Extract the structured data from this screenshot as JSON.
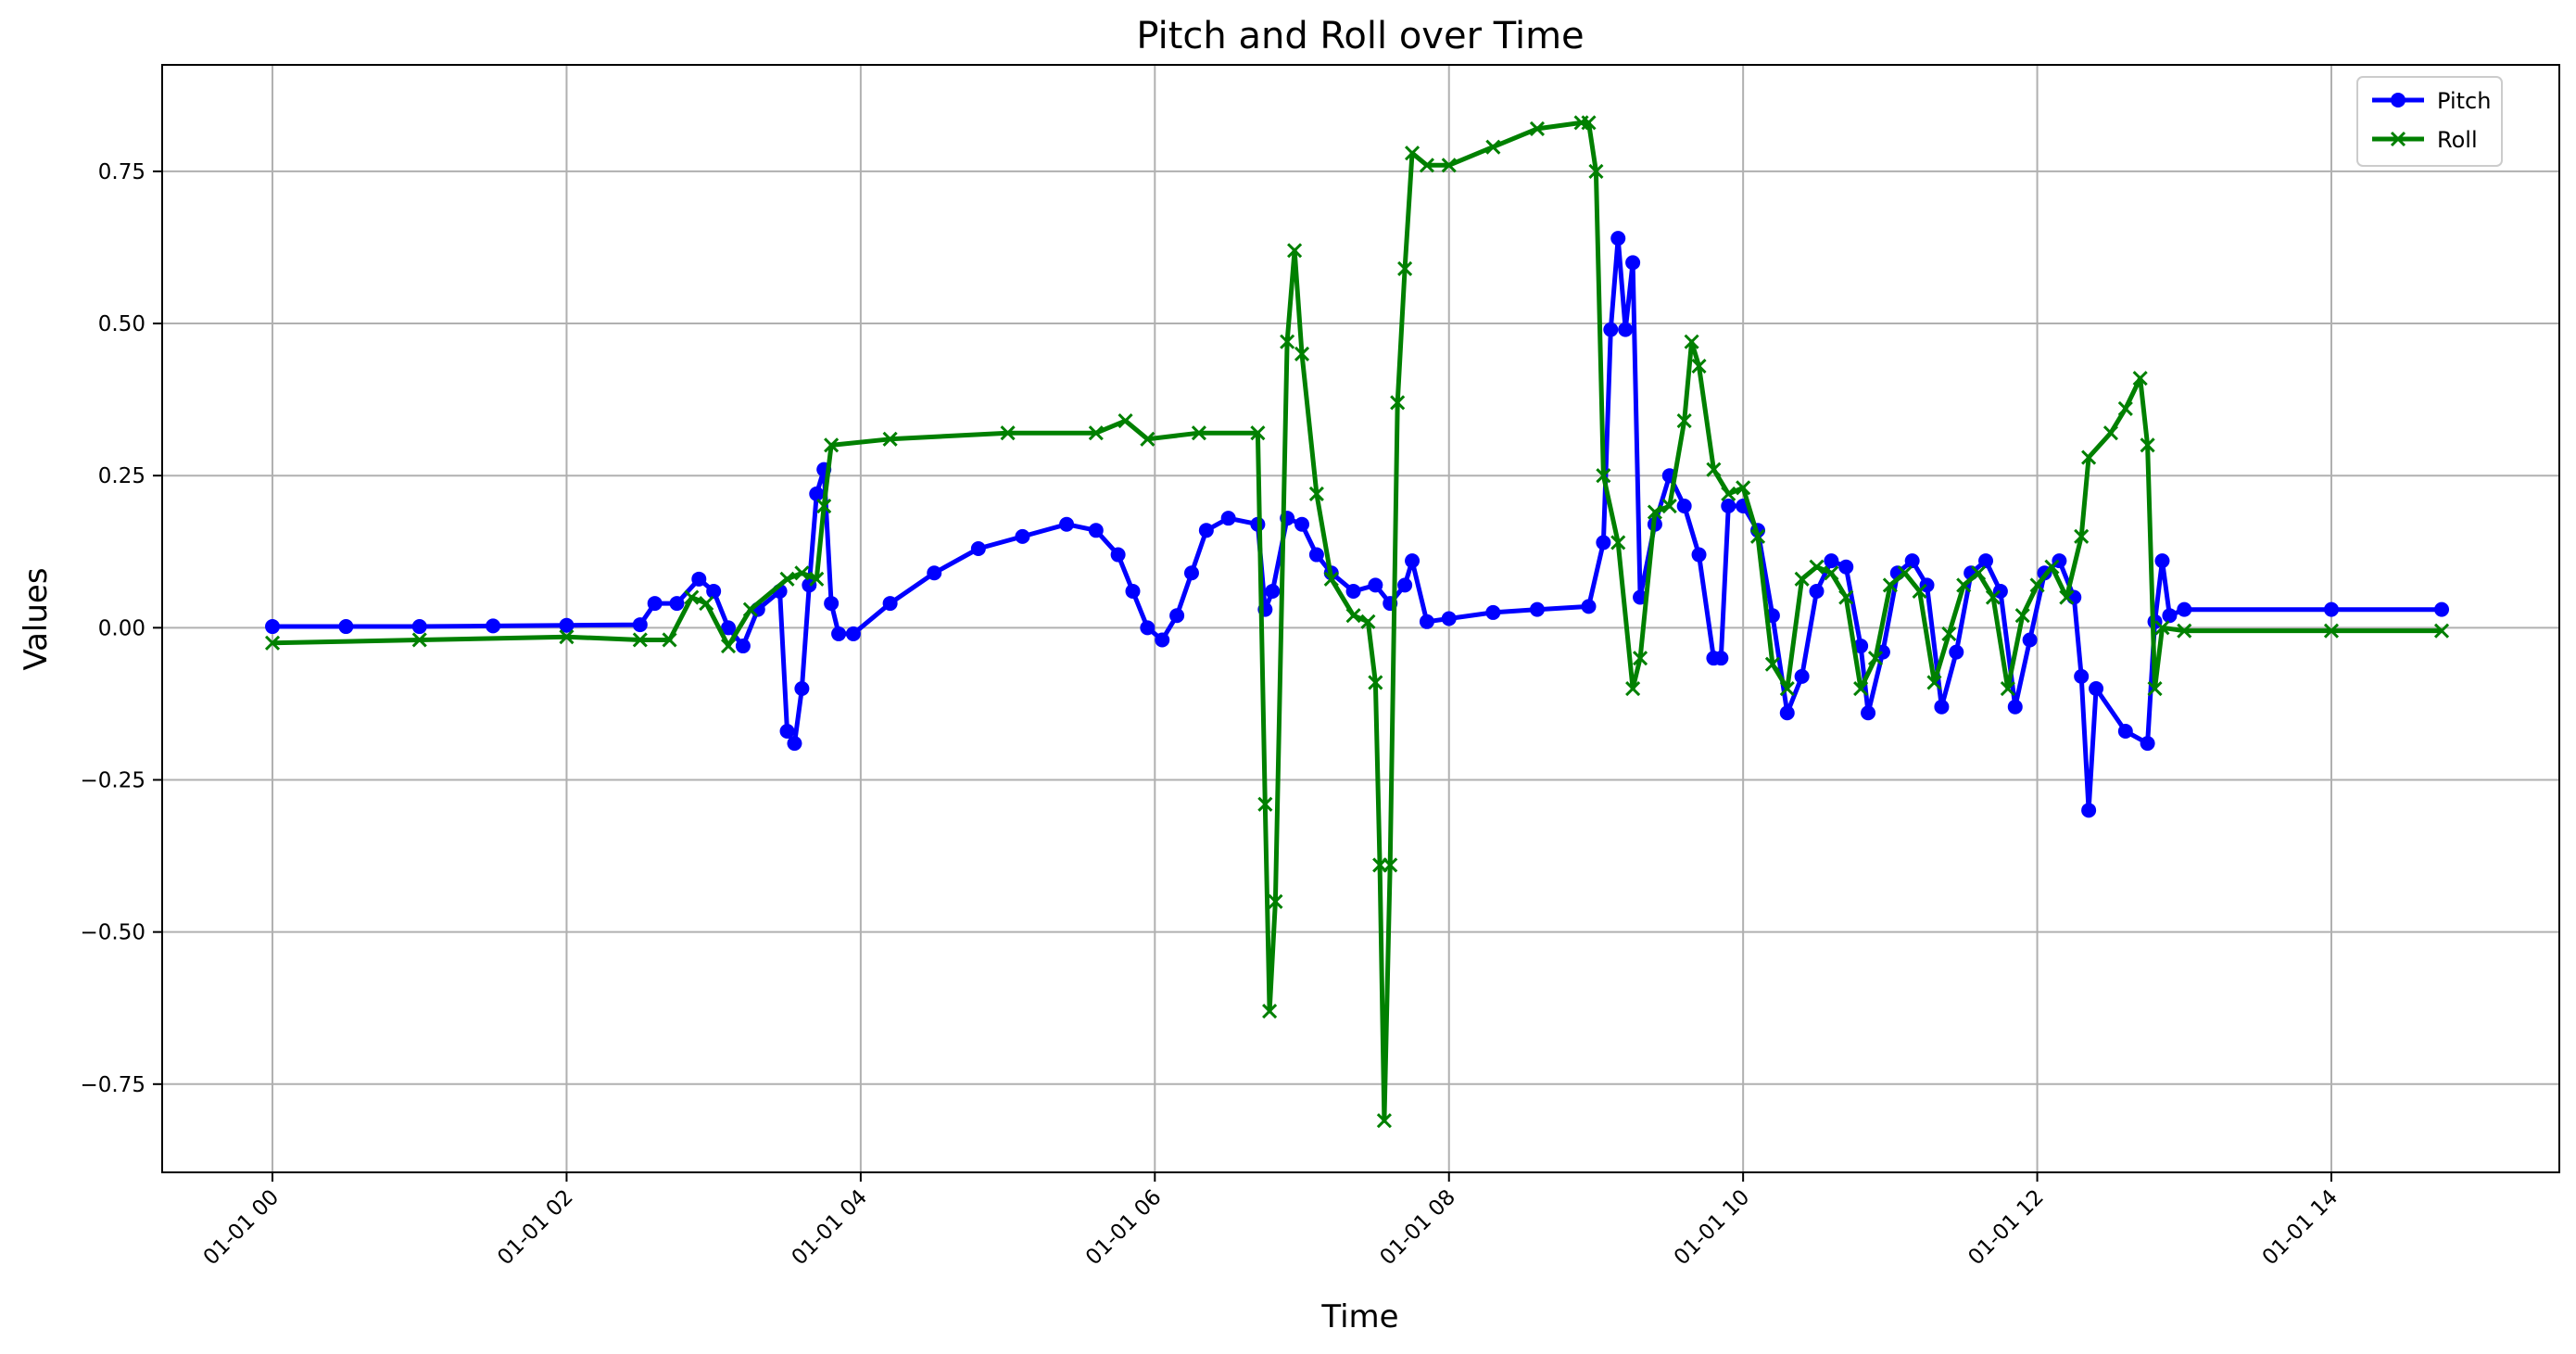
{
  "chart_data": {
    "type": "line",
    "title": "Pitch and Roll over Time",
    "xlabel": "Time",
    "ylabel": "Values",
    "x_tick_labels": [
      "01-01 00",
      "01-01 02",
      "01-01 04",
      "01-01 06",
      "01-01 08",
      "01-01 10",
      "01-01 12",
      "01-01 14"
    ],
    "x_tick_hours": [
      0,
      2,
      4,
      6,
      8,
      10,
      12,
      14
    ],
    "y_tick_labels": [
      "−0.75",
      "−0.50",
      "−0.25",
      "0.00",
      "0.25",
      "0.50",
      "0.75"
    ],
    "y_tick_values": [
      -0.75,
      -0.5,
      -0.25,
      0,
      0.25,
      0.5,
      0.75
    ],
    "x_unit": "hours since 01-01 00:00",
    "xlim": [
      -0.75,
      15.55
    ],
    "ylim": [
      -0.895,
      0.925
    ],
    "grid": true,
    "legend_position": "top-right",
    "series": [
      {
        "name": "Pitch",
        "color": "#0000ff",
        "marker": "circle",
        "points": [
          [
            0,
            0.002
          ],
          [
            0.5,
            0.002
          ],
          [
            1,
            0.002
          ],
          [
            1.5,
            0.003
          ],
          [
            2,
            0.004
          ],
          [
            2.5,
            0.005
          ],
          [
            2.6,
            0.04
          ],
          [
            2.75,
            0.04
          ],
          [
            2.9,
            0.08
          ],
          [
            3.0,
            0.06
          ],
          [
            3.1,
            0.0
          ],
          [
            3.2,
            -0.03
          ],
          [
            3.3,
            0.03
          ],
          [
            3.45,
            0.06
          ],
          [
            3.5,
            -0.17
          ],
          [
            3.55,
            -0.19
          ],
          [
            3.6,
            -0.1
          ],
          [
            3.65,
            0.07
          ],
          [
            3.7,
            0.22
          ],
          [
            3.75,
            0.26
          ],
          [
            3.8,
            0.04
          ],
          [
            3.85,
            -0.01
          ],
          [
            3.95,
            -0.01
          ],
          [
            4.2,
            0.04
          ],
          [
            4.5,
            0.09
          ],
          [
            4.8,
            0.13
          ],
          [
            5.1,
            0.15
          ],
          [
            5.4,
            0.17
          ],
          [
            5.6,
            0.16
          ],
          [
            5.75,
            0.12
          ],
          [
            5.85,
            0.06
          ],
          [
            5.95,
            0.0
          ],
          [
            6.05,
            -0.02
          ],
          [
            6.15,
            0.02
          ],
          [
            6.25,
            0.09
          ],
          [
            6.35,
            0.16
          ],
          [
            6.5,
            0.18
          ],
          [
            6.7,
            0.17
          ],
          [
            6.75,
            0.03
          ],
          [
            6.8,
            0.06
          ],
          [
            6.9,
            0.18
          ],
          [
            7.0,
            0.17
          ],
          [
            7.1,
            0.12
          ],
          [
            7.2,
            0.09
          ],
          [
            7.35,
            0.06
          ],
          [
            7.5,
            0.07
          ],
          [
            7.6,
            0.04
          ],
          [
            7.7,
            0.07
          ],
          [
            7.75,
            0.11
          ],
          [
            7.85,
            0.01
          ],
          [
            8.0,
            0.015
          ],
          [
            8.3,
            0.025
          ],
          [
            8.6,
            0.03
          ],
          [
            8.95,
            0.035
          ],
          [
            9.05,
            0.14
          ],
          [
            9.1,
            0.49
          ],
          [
            9.15,
            0.64
          ],
          [
            9.2,
            0.49
          ],
          [
            9.25,
            0.6
          ],
          [
            9.3,
            0.05
          ],
          [
            9.4,
            0.17
          ],
          [
            9.5,
            0.25
          ],
          [
            9.6,
            0.2
          ],
          [
            9.7,
            0.12
          ],
          [
            9.8,
            -0.05
          ],
          [
            9.85,
            -0.05
          ],
          [
            9.9,
            0.2
          ],
          [
            10.0,
            0.2
          ],
          [
            10.1,
            0.16
          ],
          [
            10.2,
            0.02
          ],
          [
            10.3,
            -0.14
          ],
          [
            10.4,
            -0.08
          ],
          [
            10.5,
            0.06
          ],
          [
            10.6,
            0.11
          ],
          [
            10.7,
            0.1
          ],
          [
            10.8,
            -0.03
          ],
          [
            10.85,
            -0.14
          ],
          [
            10.95,
            -0.04
          ],
          [
            11.05,
            0.09
          ],
          [
            11.15,
            0.11
          ],
          [
            11.25,
            0.07
          ],
          [
            11.35,
            -0.13
          ],
          [
            11.45,
            -0.04
          ],
          [
            11.55,
            0.09
          ],
          [
            11.65,
            0.11
          ],
          [
            11.75,
            0.06
          ],
          [
            11.85,
            -0.13
          ],
          [
            11.95,
            -0.02
          ],
          [
            12.05,
            0.09
          ],
          [
            12.15,
            0.11
          ],
          [
            12.25,
            0.05
          ],
          [
            12.3,
            -0.08
          ],
          [
            12.35,
            -0.3
          ],
          [
            12.4,
            -0.1
          ],
          [
            12.6,
            -0.17
          ],
          [
            12.75,
            -0.19
          ],
          [
            12.8,
            0.01
          ],
          [
            12.85,
            0.11
          ],
          [
            12.9,
            0.02
          ],
          [
            13.0,
            0.03
          ],
          [
            14.0,
            0.03
          ],
          [
            14.75,
            0.03
          ]
        ]
      },
      {
        "name": "Roll",
        "color": "#008000",
        "marker": "x",
        "points": [
          [
            0,
            -0.025
          ],
          [
            1,
            -0.02
          ],
          [
            2,
            -0.015
          ],
          [
            2.5,
            -0.02
          ],
          [
            2.7,
            -0.02
          ],
          [
            2.85,
            0.05
          ],
          [
            2.95,
            0.04
          ],
          [
            3.1,
            -0.03
          ],
          [
            3.25,
            0.03
          ],
          [
            3.5,
            0.08
          ],
          [
            3.6,
            0.09
          ],
          [
            3.7,
            0.08
          ],
          [
            3.75,
            0.2
          ],
          [
            3.8,
            0.3
          ],
          [
            4.2,
            0.31
          ],
          [
            5.0,
            0.32
          ],
          [
            5.6,
            0.32
          ],
          [
            5.8,
            0.34
          ],
          [
            5.95,
            0.31
          ],
          [
            6.3,
            0.32
          ],
          [
            6.7,
            0.32
          ],
          [
            6.75,
            -0.29
          ],
          [
            6.78,
            -0.63
          ],
          [
            6.82,
            -0.45
          ],
          [
            6.9,
            0.47
          ],
          [
            6.95,
            0.62
          ],
          [
            7.0,
            0.45
          ],
          [
            7.1,
            0.22
          ],
          [
            7.2,
            0.08
          ],
          [
            7.35,
            0.02
          ],
          [
            7.45,
            0.01
          ],
          [
            7.5,
            -0.09
          ],
          [
            7.53,
            -0.39
          ],
          [
            7.56,
            -0.81
          ],
          [
            7.6,
            -0.39
          ],
          [
            7.65,
            0.37
          ],
          [
            7.7,
            0.59
          ],
          [
            7.75,
            0.78
          ],
          [
            7.85,
            0.76
          ],
          [
            8.0,
            0.76
          ],
          [
            8.3,
            0.79
          ],
          [
            8.6,
            0.82
          ],
          [
            8.9,
            0.83
          ],
          [
            8.95,
            0.83
          ],
          [
            9.0,
            0.75
          ],
          [
            9.05,
            0.25
          ],
          [
            9.15,
            0.14
          ],
          [
            9.25,
            -0.1
          ],
          [
            9.3,
            -0.05
          ],
          [
            9.4,
            0.19
          ],
          [
            9.5,
            0.2
          ],
          [
            9.6,
            0.34
          ],
          [
            9.65,
            0.47
          ],
          [
            9.7,
            0.43
          ],
          [
            9.8,
            0.26
          ],
          [
            9.9,
            0.22
          ],
          [
            10.0,
            0.23
          ],
          [
            10.1,
            0.15
          ],
          [
            10.2,
            -0.06
          ],
          [
            10.3,
            -0.1
          ],
          [
            10.4,
            0.08
          ],
          [
            10.5,
            0.1
          ],
          [
            10.6,
            0.09
          ],
          [
            10.7,
            0.05
          ],
          [
            10.8,
            -0.1
          ],
          [
            10.9,
            -0.05
          ],
          [
            11.0,
            0.07
          ],
          [
            11.1,
            0.09
          ],
          [
            11.2,
            0.06
          ],
          [
            11.3,
            -0.09
          ],
          [
            11.4,
            -0.01
          ],
          [
            11.5,
            0.07
          ],
          [
            11.6,
            0.09
          ],
          [
            11.7,
            0.05
          ],
          [
            11.8,
            -0.1
          ],
          [
            11.9,
            0.02
          ],
          [
            12.0,
            0.07
          ],
          [
            12.1,
            0.1
          ],
          [
            12.2,
            0.05
          ],
          [
            12.3,
            0.15
          ],
          [
            12.35,
            0.28
          ],
          [
            12.5,
            0.32
          ],
          [
            12.6,
            0.36
          ],
          [
            12.7,
            0.41
          ],
          [
            12.75,
            0.3
          ],
          [
            12.8,
            -0.1
          ],
          [
            12.85,
            0.0
          ],
          [
            13.0,
            -0.005
          ],
          [
            14.0,
            -0.005
          ],
          [
            14.75,
            -0.005
          ]
        ]
      }
    ]
  }
}
